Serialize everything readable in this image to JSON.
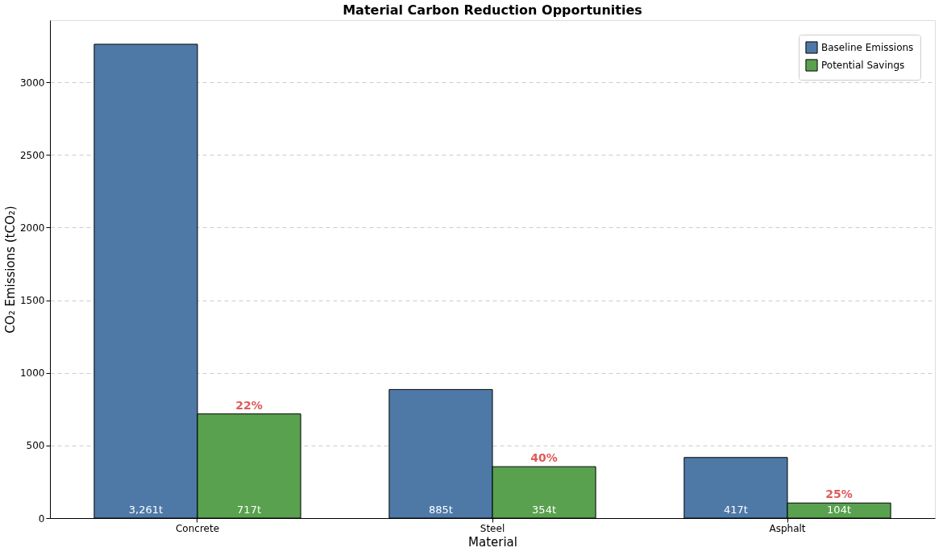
{
  "chart_data": {
    "type": "bar",
    "title": "Material Carbon Reduction Opportunities",
    "xlabel": "Material",
    "ylabel": "CO₂ Emissions (tCO₂)",
    "categories": [
      "Concrete",
      "Steel",
      "Asphalt"
    ],
    "series": [
      {
        "name": "Baseline Emissions",
        "color": "#4e79a7",
        "values": [
          3261,
          885,
          417
        ],
        "value_labels": [
          "3,261t",
          "885t",
          "417t"
        ]
      },
      {
        "name": "Potential Savings",
        "color": "#59a14f",
        "values": [
          717,
          354,
          104
        ],
        "value_labels": [
          "717t",
          "354t",
          "104t"
        ]
      }
    ],
    "annotations": [
      "22%",
      "40%",
      "25%"
    ],
    "ylim": [
      0,
      3427
    ],
    "yticks": [
      0,
      500,
      1000,
      1500,
      2000,
      2500,
      3000
    ],
    "grid": "y",
    "legend": "top right"
  }
}
